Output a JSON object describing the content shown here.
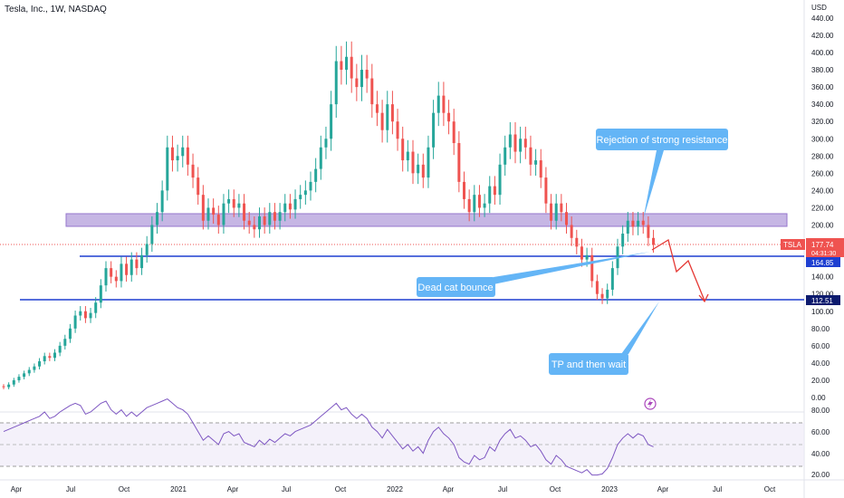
{
  "header": {
    "title": "Tesla, Inc., 1W, NASDAQ"
  },
  "price_axis": {
    "currency": "USD",
    "ticks": [
      "440.00",
      "420.00",
      "400.00",
      "380.00",
      "360.00",
      "340.00",
      "320.00",
      "300.00",
      "280.00",
      "260.00",
      "240.00",
      "220.00",
      "200.00",
      "180.00",
      "160.00",
      "140.00",
      "120.00",
      "100.00",
      "80.00",
      "60.00",
      "40.00",
      "20.00",
      "0.00"
    ]
  },
  "rsi_axis": {
    "ticks": [
      "80.00",
      "60.00",
      "40.00",
      "20.00"
    ]
  },
  "time_axis": {
    "labels": [
      "Apr",
      "Jul",
      "Oct",
      "2021",
      "Apr",
      "Jul",
      "Oct",
      "2022",
      "Apr",
      "Jul",
      "Oct",
      "2023",
      "Apr",
      "Jul",
      "Oct"
    ]
  },
  "price_labels": {
    "ticker": "TSLA",
    "last_price": "177.74",
    "countdown": "04:31:30",
    "level_1": "164.85",
    "level_2": "112.51"
  },
  "annotations": {
    "resistance_note": "Rejection of strong resistance",
    "bounce_note": "Dead cat bounce",
    "target_note": "TP and then wait"
  },
  "colors": {
    "up": "#26a69a",
    "down": "#ef5350",
    "resistance_zone": "#b39ddb",
    "support_line": "#1e3fd1",
    "callout": "#64b5f6",
    "rsi": "#7e57c2",
    "projection": "#e53935"
  },
  "chart_data": {
    "type": "candlestick",
    "title": "Tesla, Inc., 1W, NASDAQ",
    "ylim": [
      0,
      450
    ],
    "horizontal_levels": [
      164.85,
      112.51
    ],
    "resistance_zone": [
      200,
      215
    ],
    "last_price": 177.74,
    "series": [
      {
        "name": "TSLA",
        "points": [
          [
            13,
            12
          ],
          [
            12,
            15
          ],
          [
            15,
            20
          ],
          [
            20,
            24
          ],
          [
            24,
            28
          ],
          [
            28,
            32
          ],
          [
            32,
            36
          ],
          [
            36,
            42
          ],
          [
            42,
            48
          ],
          [
            48,
            46
          ],
          [
            46,
            52
          ],
          [
            52,
            60
          ],
          [
            60,
            68
          ],
          [
            68,
            80
          ],
          [
            80,
            95
          ],
          [
            95,
            100
          ],
          [
            100,
            92
          ],
          [
            92,
            98
          ],
          [
            98,
            110
          ],
          [
            110,
            130
          ],
          [
            130,
            150
          ],
          [
            150,
            140
          ],
          [
            140,
            135
          ],
          [
            135,
            155
          ],
          [
            155,
            142
          ],
          [
            142,
            160
          ],
          [
            160,
            150
          ],
          [
            150,
            165
          ],
          [
            165,
            178
          ],
          [
            178,
            200
          ],
          [
            200,
            215
          ],
          [
            215,
            240
          ],
          [
            240,
            290
          ],
          [
            290,
            275
          ],
          [
            275,
            280
          ],
          [
            280,
            290
          ],
          [
            290,
            270
          ],
          [
            270,
            255
          ],
          [
            255,
            235
          ],
          [
            235,
            205
          ],
          [
            205,
            220
          ],
          [
            220,
            212
          ],
          [
            212,
            200
          ],
          [
            200,
            225
          ],
          [
            225,
            230
          ],
          [
            230,
            220
          ],
          [
            220,
            225
          ],
          [
            225,
            205
          ],
          [
            205,
            200
          ],
          [
            200,
            195
          ],
          [
            195,
            210
          ],
          [
            210,
            200
          ],
          [
            200,
            215
          ],
          [
            215,
            205
          ],
          [
            205,
            215
          ],
          [
            215,
            225
          ],
          [
            225,
            218
          ],
          [
            218,
            230
          ],
          [
            230,
            235
          ],
          [
            235,
            240
          ],
          [
            240,
            250
          ],
          [
            250,
            265
          ],
          [
            265,
            290
          ],
          [
            290,
            300
          ],
          [
            300,
            340
          ],
          [
            340,
            390
          ],
          [
            390,
            380
          ],
          [
            380,
            395
          ],
          [
            395,
            370
          ],
          [
            370,
            360
          ],
          [
            360,
            380
          ],
          [
            380,
            370
          ],
          [
            370,
            340
          ],
          [
            340,
            330
          ],
          [
            330,
            310
          ],
          [
            310,
            340
          ],
          [
            340,
            320
          ],
          [
            320,
            300
          ],
          [
            300,
            275
          ],
          [
            275,
            285
          ],
          [
            285,
            260
          ],
          [
            260,
            270
          ],
          [
            270,
            255
          ],
          [
            255,
            290
          ],
          [
            290,
            330
          ],
          [
            330,
            350
          ],
          [
            350,
            330
          ],
          [
            330,
            320
          ],
          [
            320,
            295
          ],
          [
            295,
            250
          ],
          [
            250,
            230
          ],
          [
            230,
            215
          ],
          [
            215,
            235
          ],
          [
            235,
            220
          ],
          [
            220,
            225
          ],
          [
            225,
            245
          ],
          [
            245,
            235
          ],
          [
            235,
            270
          ],
          [
            270,
            290
          ],
          [
            290,
            305
          ],
          [
            305,
            285
          ],
          [
            285,
            300
          ],
          [
            300,
            290
          ],
          [
            290,
            270
          ],
          [
            270,
            275
          ],
          [
            275,
            255
          ],
          [
            255,
            225
          ],
          [
            225,
            205
          ],
          [
            205,
            225
          ],
          [
            225,
            215
          ],
          [
            215,
            200
          ],
          [
            200,
            185
          ],
          [
            185,
            175
          ],
          [
            175,
            160
          ],
          [
            160,
            165
          ],
          [
            165,
            135
          ],
          [
            135,
            120
          ],
          [
            120,
            115
          ],
          [
            115,
            125
          ],
          [
            125,
            150
          ],
          [
            150,
            175
          ],
          [
            175,
            190
          ],
          [
            190,
            205
          ],
          [
            205,
            198
          ],
          [
            198,
            205
          ],
          [
            205,
            200
          ],
          [
            200,
            185
          ],
          [
            185,
            177
          ]
        ]
      },
      {
        "name": "RSI",
        "values": [
          62,
          64,
          66,
          68,
          70,
          72,
          74,
          76,
          80,
          74,
          76,
          80,
          83,
          86,
          88,
          86,
          78,
          80,
          84,
          88,
          90,
          82,
          78,
          82,
          76,
          80,
          76,
          80,
          84,
          86,
          88,
          90,
          92,
          88,
          84,
          82,
          78,
          70,
          62,
          54,
          58,
          54,
          50,
          60,
          62,
          58,
          60,
          52,
          50,
          48,
          54,
          50,
          55,
          52,
          56,
          60,
          58,
          62,
          64,
          66,
          68,
          72,
          76,
          80,
          84,
          88,
          82,
          84,
          78,
          74,
          78,
          74,
          66,
          62,
          56,
          64,
          58,
          52,
          46,
          50,
          44,
          48,
          42,
          54,
          62,
          66,
          60,
          56,
          50,
          38,
          34,
          32,
          40,
          36,
          38,
          48,
          44,
          54,
          60,
          64,
          56,
          58,
          54,
          48,
          50,
          44,
          36,
          32,
          40,
          36,
          30,
          28,
          26,
          24,
          27,
          22,
          22,
          23,
          28,
          38,
          50,
          56,
          60,
          56,
          60,
          58,
          50,
          48
        ]
      }
    ]
  }
}
